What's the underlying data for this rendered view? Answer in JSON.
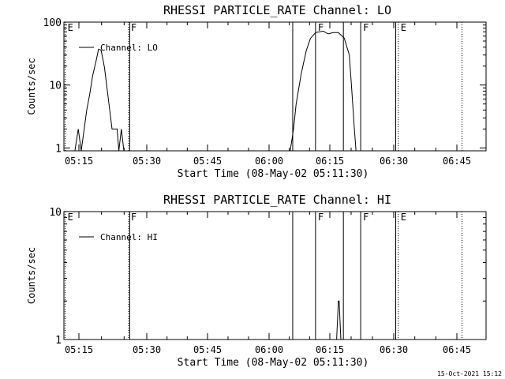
{
  "footer": {
    "timestamp": "15-Oct-2021 15:12"
  },
  "chart_data": [
    {
      "type": "line",
      "title": "RHESSI PARTICLE_RATE Channel: LO",
      "xlabel": "Start Time (08-May-02 05:11:30)",
      "ylabel": "Counts/sec",
      "x_ticks": [
        "05:15",
        "05:30",
        "05:45",
        "06:00",
        "06:15",
        "06:30",
        "06:45"
      ],
      "y_ticks": [
        "1",
        "10",
        "100"
      ],
      "y_scale": "log",
      "xlim_minutes_from_start": [
        0,
        100
      ],
      "ylim": [
        0.9,
        100
      ],
      "legend": "top-left",
      "series": [
        {
          "name": "Channel: LO",
          "x_minutes_from_start": [
            2.6,
            3.4,
            4.1,
            4.8,
            5.4,
            6.1,
            6.8,
            7.6,
            8.2,
            8.8,
            9.6,
            10.3,
            11.4,
            12.6,
            13.0,
            13.6,
            14.2,
            14.8,
            53.6,
            54.4,
            55.0,
            56.2,
            57.4,
            58.4,
            59.6,
            61.4,
            62.6,
            63.8,
            65.0,
            66.4,
            67.6,
            68.2,
            68.8,
            69.2,
            69.6
          ],
          "values": [
            0.9,
            2,
            0.9,
            2,
            4,
            7,
            14,
            24,
            37,
            36,
            19,
            8,
            2,
            2,
            0.9,
            2,
            0.9,
            0.9,
            0.9,
            2,
            5,
            15,
            35,
            55,
            68,
            72,
            65,
            68,
            68,
            56,
            30,
            8,
            2,
            0.9,
            0.9
          ]
        }
      ],
      "markers": [
        {
          "label": "E",
          "x_minutes_from_start": 0.3,
          "style": "dotted"
        },
        {
          "label": "F",
          "x_minutes_from_start": 15.3,
          "style": "dotted"
        },
        {
          "label": "",
          "x_minutes_from_start": 15.6,
          "style": "solid"
        },
        {
          "label": "",
          "x_minutes_from_start": 54.2,
          "style": "solid"
        },
        {
          "label": "F",
          "x_minutes_from_start": 59.6,
          "style": "solid"
        },
        {
          "label": "",
          "x_minutes_from_start": 66.2,
          "style": "solid"
        },
        {
          "label": "F",
          "x_minutes_from_start": 70.3,
          "style": "solid"
        },
        {
          "label": "",
          "x_minutes_from_start": 78.6,
          "style": "solid"
        },
        {
          "label": "E",
          "x_minutes_from_start": 79.2,
          "style": "dotted"
        },
        {
          "label": "",
          "x_minutes_from_start": 94.3,
          "style": "dotted"
        }
      ]
    },
    {
      "type": "line",
      "title": "RHESSI PARTICLE_RATE Channel: HI",
      "xlabel": "Start Time (08-May-02 05:11:30)",
      "ylabel": "Counts/sec",
      "x_ticks": [
        "05:15",
        "05:30",
        "05:45",
        "06:00",
        "06:15",
        "06:30",
        "06:45"
      ],
      "y_ticks": [
        "1",
        "10"
      ],
      "y_scale": "log",
      "xlim_minutes_from_start": [
        0,
        100
      ],
      "ylim": [
        1,
        10
      ],
      "legend": "top-left",
      "series": [
        {
          "name": "Channel: HI",
          "x_minutes_from_start": [
            64.6,
            64.8,
            65.0,
            65.2,
            65.4,
            65.6,
            65.8
          ],
          "values": [
            1,
            1.4,
            2,
            2,
            1.4,
            1,
            1
          ]
        }
      ],
      "markers": [
        {
          "label": "E",
          "x_minutes_from_start": 0.3,
          "style": "dotted"
        },
        {
          "label": "F",
          "x_minutes_from_start": 15.3,
          "style": "dotted"
        },
        {
          "label": "",
          "x_minutes_from_start": 15.6,
          "style": "solid"
        },
        {
          "label": "",
          "x_minutes_from_start": 54.2,
          "style": "solid"
        },
        {
          "label": "F",
          "x_minutes_from_start": 59.6,
          "style": "solid"
        },
        {
          "label": "",
          "x_minutes_from_start": 66.2,
          "style": "solid"
        },
        {
          "label": "F",
          "x_minutes_from_start": 70.3,
          "style": "solid"
        },
        {
          "label": "",
          "x_minutes_from_start": 78.6,
          "style": "solid"
        },
        {
          "label": "E",
          "x_minutes_from_start": 79.2,
          "style": "dotted"
        },
        {
          "label": "",
          "x_minutes_from_start": 94.3,
          "style": "dotted"
        }
      ]
    }
  ]
}
